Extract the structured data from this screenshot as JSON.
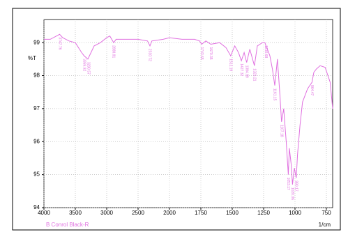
{
  "chart_data": {
    "type": "line",
    "ylabel": "%T",
    "xlabel": "1/cm",
    "series_label": "B Conrol Black-R",
    "series": [
      {
        "name": "B Conrol Black-R",
        "color": "#e070e0",
        "x": [
          4000,
          3900,
          3800,
          3750,
          3700,
          3600,
          3500,
          3400,
          3360,
          3300,
          3250,
          3200,
          3100,
          3000,
          2950,
          2888.81,
          2850,
          2700,
          2500,
          2350,
          2310.72,
          2280,
          2100,
          2000,
          1900,
          1800,
          1760,
          1743.65,
          1710,
          1670.35,
          1600,
          1550,
          1512.19,
          1480,
          1450,
          1427.32,
          1405,
          1384.89,
          1360,
          1323.21,
          1300,
          1260,
          1240,
          1200,
          1180,
          1161.15,
          1140,
          1120,
          1107.18,
          1090,
          1070,
          1053.17,
          1045,
          1030,
          1020.06,
          1005,
          990.17,
          980,
          960,
          940,
          900,
          864.47,
          850,
          830,
          800,
          760,
          720,
          700
        ],
        "values": [
          99.1,
          99.1,
          99.2,
          99.25,
          99.15,
          99.05,
          99.0,
          98.7,
          98.6,
          98.5,
          98.7,
          98.9,
          99.0,
          99.15,
          99.2,
          99.0,
          99.1,
          99.1,
          99.1,
          99.05,
          98.9,
          99.05,
          99.1,
          99.15,
          99.1,
          99.1,
          99.05,
          98.95,
          99.05,
          98.95,
          99.0,
          98.85,
          98.6,
          98.9,
          98.7,
          98.45,
          98.7,
          98.4,
          98.8,
          98.3,
          98.9,
          99.0,
          99.0,
          98.6,
          98.2,
          97.7,
          98.5,
          97.4,
          96.6,
          97.0,
          96.0,
          95.0,
          95.8,
          95.3,
          94.7,
          95.2,
          94.9,
          95.6,
          96.5,
          97.2,
          97.6,
          97.8,
          98.1,
          98.2,
          98.3,
          98.25,
          97.8,
          97.0
        ]
      }
    ],
    "peaks": [
      3747.76,
      3359.92,
      3290.57,
      2888.81,
      2310.72,
      1743.65,
      1670.35,
      1512.19,
      1427.32,
      1384.89,
      1323.21,
      1230.68,
      1161.15,
      1107.18,
      1053.17,
      1020.06,
      990.17,
      864.47
    ],
    "xlim": [
      4000,
      700
    ],
    "ylim": [
      94,
      99.7
    ],
    "xticks": [
      4000,
      3500,
      3000,
      2500,
      2000,
      1750,
      1500,
      1250,
      1000,
      750
    ],
    "yticks": [
      94,
      95,
      96,
      97,
      98,
      99
    ],
    "grid": true
  }
}
